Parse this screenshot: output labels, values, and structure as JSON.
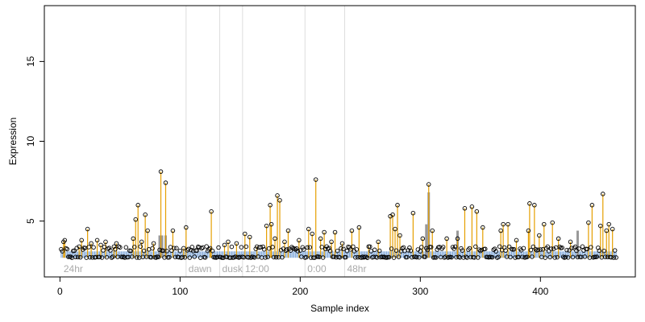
{
  "chart_data": {
    "type": "scatter",
    "title": "",
    "xlabel": "Sample index",
    "ylabel": "Expression",
    "xlim": [
      -13,
      479
    ],
    "ylim": [
      1.5,
      18.5
    ],
    "x_ticks": [
      0,
      100,
      200,
      300,
      400
    ],
    "y_ticks": [
      5,
      10,
      15
    ],
    "grid": false,
    "colors": {
      "points_stroke": "#000000",
      "expression_stem": "#e69f00",
      "baseline_bar": "#7fa7d9",
      "secondary_bar": "#999999",
      "region_divider": "#dddddd",
      "region_label": "#aaaaaa"
    },
    "regions": [
      {
        "label": "24hr",
        "start": 1
      },
      {
        "label": "dawn",
        "start": 105
      },
      {
        "label": "dusk",
        "start": 133
      },
      {
        "label": "12:00",
        "start": 152
      },
      {
        "label": "0:00",
        "start": 204
      },
      {
        "label": "48hr",
        "start": 237
      }
    ],
    "baseline": 2.7,
    "bar_level": 3.1,
    "secondary_bars": [
      {
        "x": 83,
        "y": 4.1
      },
      {
        "x": 85,
        "y": 4.1
      },
      {
        "x": 88,
        "y": 4.1
      },
      {
        "x": 305,
        "y": 4.8
      },
      {
        "x": 307,
        "y": 6.8
      },
      {
        "x": 331,
        "y": 4.4
      },
      {
        "x": 431,
        "y": 4.4
      }
    ],
    "peaks": [
      {
        "x": 3,
        "y": 3.7
      },
      {
        "x": 4,
        "y": 3.8
      },
      {
        "x": 16,
        "y": 3.4
      },
      {
        "x": 18,
        "y": 3.8
      },
      {
        "x": 23,
        "y": 4.5
      },
      {
        "x": 26,
        "y": 3.6
      },
      {
        "x": 31,
        "y": 3.8
      },
      {
        "x": 34,
        "y": 3.5
      },
      {
        "x": 38,
        "y": 3.7
      },
      {
        "x": 45,
        "y": 3.4
      },
      {
        "x": 47,
        "y": 3.6
      },
      {
        "x": 61,
        "y": 3.9
      },
      {
        "x": 63,
        "y": 5.1
      },
      {
        "x": 65,
        "y": 6.0
      },
      {
        "x": 68,
        "y": 3.7
      },
      {
        "x": 71,
        "y": 5.4
      },
      {
        "x": 73,
        "y": 4.4
      },
      {
        "x": 78,
        "y": 3.6
      },
      {
        "x": 84,
        "y": 8.1
      },
      {
        "x": 88,
        "y": 7.4
      },
      {
        "x": 94,
        "y": 4.4
      },
      {
        "x": 103,
        "y": 3.3
      },
      {
        "x": 105,
        "y": 4.6
      },
      {
        "x": 125,
        "y": 3.3
      },
      {
        "x": 126,
        "y": 5.6
      },
      {
        "x": 137,
        "y": 3.5
      },
      {
        "x": 140,
        "y": 3.7
      },
      {
        "x": 147,
        "y": 3.6
      },
      {
        "x": 154,
        "y": 4.2
      },
      {
        "x": 158,
        "y": 4.0
      },
      {
        "x": 164,
        "y": 3.4
      },
      {
        "x": 172,
        "y": 4.7
      },
      {
        "x": 175,
        "y": 6.0
      },
      {
        "x": 176,
        "y": 4.8
      },
      {
        "x": 179,
        "y": 3.9
      },
      {
        "x": 181,
        "y": 6.6
      },
      {
        "x": 183,
        "y": 6.3
      },
      {
        "x": 187,
        "y": 3.7
      },
      {
        "x": 190,
        "y": 4.4
      },
      {
        "x": 199,
        "y": 3.8
      },
      {
        "x": 207,
        "y": 4.5
      },
      {
        "x": 210,
        "y": 4.2
      },
      {
        "x": 213,
        "y": 7.6
      },
      {
        "x": 217,
        "y": 3.9
      },
      {
        "x": 220,
        "y": 4.3
      },
      {
        "x": 226,
        "y": 3.7
      },
      {
        "x": 229,
        "y": 4.3
      },
      {
        "x": 235,
        "y": 3.6
      },
      {
        "x": 243,
        "y": 4.4
      },
      {
        "x": 249,
        "y": 4.6
      },
      {
        "x": 257,
        "y": 3.4
      },
      {
        "x": 265,
        "y": 3.7
      },
      {
        "x": 275,
        "y": 5.3
      },
      {
        "x": 277,
        "y": 5.4
      },
      {
        "x": 279,
        "y": 4.5
      },
      {
        "x": 281,
        "y": 6.0
      },
      {
        "x": 283,
        "y": 4.1
      },
      {
        "x": 294,
        "y": 5.5
      },
      {
        "x": 302,
        "y": 3.9
      },
      {
        "x": 307,
        "y": 7.3
      },
      {
        "x": 310,
        "y": 4.4
      },
      {
        "x": 322,
        "y": 3.9
      },
      {
        "x": 331,
        "y": 3.9
      },
      {
        "x": 337,
        "y": 5.8
      },
      {
        "x": 343,
        "y": 5.9
      },
      {
        "x": 347,
        "y": 5.6
      },
      {
        "x": 352,
        "y": 4.6
      },
      {
        "x": 367,
        "y": 4.4
      },
      {
        "x": 369,
        "y": 4.8
      },
      {
        "x": 373,
        "y": 4.8
      },
      {
        "x": 380,
        "y": 3.8
      },
      {
        "x": 390,
        "y": 4.4
      },
      {
        "x": 391,
        "y": 6.1
      },
      {
        "x": 395,
        "y": 6.0
      },
      {
        "x": 399,
        "y": 4.1
      },
      {
        "x": 403,
        "y": 4.8
      },
      {
        "x": 410,
        "y": 4.9
      },
      {
        "x": 415,
        "y": 3.9
      },
      {
        "x": 425,
        "y": 3.7
      },
      {
        "x": 440,
        "y": 4.9
      },
      {
        "x": 443,
        "y": 6.0
      },
      {
        "x": 450,
        "y": 4.7
      },
      {
        "x": 452,
        "y": 6.7
      },
      {
        "x": 455,
        "y": 4.4
      },
      {
        "x": 457,
        "y": 4.8
      },
      {
        "x": 460,
        "y": 4.5
      }
    ],
    "n_samples": 463
  }
}
